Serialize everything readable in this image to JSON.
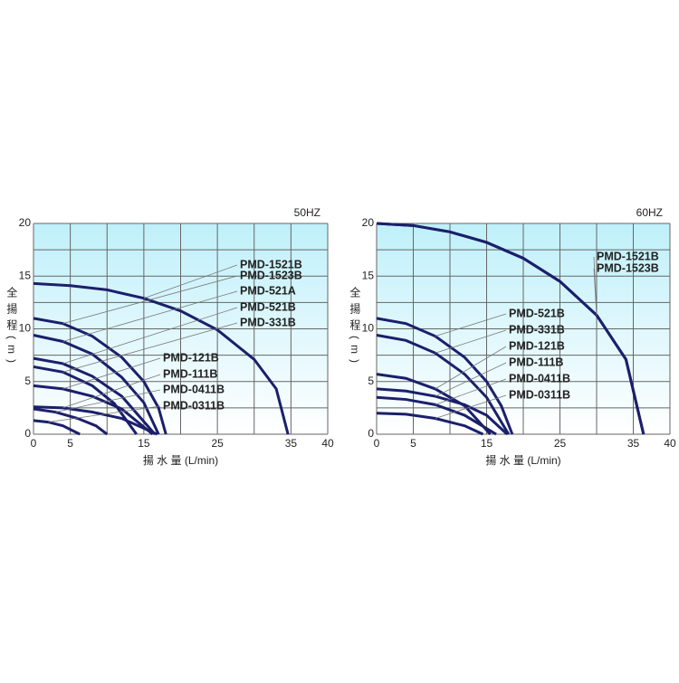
{
  "chart_data": [
    {
      "type": "line",
      "title": "50HZ",
      "x_label": "揚 水 量 (L/min)",
      "y_label": "全揚程(m)",
      "xlim": [
        0,
        40
      ],
      "xticks": [
        0,
        5,
        15,
        25,
        35,
        40
      ],
      "ylim": [
        0,
        20
      ],
      "yticks": [
        0,
        5,
        10,
        15,
        20
      ],
      "grid": true,
      "xgrid": [
        0,
        5,
        10,
        15,
        20,
        25,
        30,
        35,
        40
      ],
      "ygrid": [
        0,
        2.5,
        5,
        7.5,
        10,
        12.5,
        15,
        17.5,
        20
      ],
      "color": "#1b1f6b",
      "series": [
        {
          "name": "PMD-1521B",
          "x": [
            0,
            5,
            10,
            15,
            20,
            25,
            30,
            33,
            34.6
          ],
          "values": [
            14.3,
            14.1,
            13.7,
            12.9,
            11.7,
            9.9,
            7.1,
            4.3,
            0
          ]
        },
        {
          "name": "PMD-1523B",
          "x": [
            0,
            4,
            8,
            12,
            15,
            17,
            18
          ],
          "values": [
            11,
            10.5,
            9.3,
            7.3,
            5,
            2.5,
            0
          ]
        },
        {
          "name": "PMD-521A",
          "x": [
            0,
            4,
            8,
            12,
            15,
            17
          ],
          "values": [
            9.4,
            8.8,
            7.6,
            5.4,
            3,
            0
          ]
        },
        {
          "name": "PMD-521B",
          "x": [
            0,
            4,
            8,
            12,
            16.5
          ],
          "values": [
            7.2,
            6.7,
            5.5,
            3.6,
            0
          ]
        },
        {
          "name": "PMD-331B",
          "x": [
            0,
            4,
            8,
            11,
            14
          ],
          "values": [
            6.4,
            5.9,
            4.6,
            2.9,
            0
          ]
        },
        {
          "name": "PMD-121B",
          "x": [
            0,
            4,
            8,
            12,
            16.2
          ],
          "values": [
            4.6,
            4.3,
            3.6,
            2.4,
            0
          ]
        },
        {
          "name": "PMD-111B",
          "x": [
            0,
            4,
            8,
            12,
            16.8
          ],
          "values": [
            2.6,
            2.5,
            2.1,
            1.5,
            0
          ]
        },
        {
          "name": "PMD-0411B",
          "x": [
            0,
            3,
            6,
            8.5,
            10
          ],
          "values": [
            2.4,
            2.1,
            1.5,
            0.8,
            0
          ]
        },
        {
          "name": "PMD-0311B",
          "x": [
            0,
            2,
            4,
            6.3
          ],
          "values": [
            1.3,
            1.15,
            0.8,
            0
          ]
        }
      ]
    },
    {
      "type": "line",
      "title": "60HZ",
      "x_label": "揚 水 量 (L/min)",
      "y_label": "全揚程(m)",
      "xlim": [
        0,
        40
      ],
      "xticks": [
        0,
        5,
        15,
        25,
        35,
        40
      ],
      "ylim": [
        0,
        20
      ],
      "yticks": [
        0,
        5,
        10,
        15,
        20
      ],
      "grid": true,
      "xgrid": [
        0,
        5,
        10,
        15,
        20,
        25,
        30,
        35,
        40
      ],
      "ygrid": [
        0,
        2.5,
        5,
        7.5,
        10,
        12.5,
        15,
        17.5,
        20
      ],
      "color": "#1b1f6b",
      "series": [
        {
          "name": "PMD-1521B",
          "x": [
            0,
            5,
            10,
            15,
            20,
            25,
            30,
            34,
            36.4
          ],
          "values": [
            20,
            19.8,
            19.2,
            18.2,
            16.7,
            14.5,
            11.3,
            7.1,
            0
          ]
        },
        {
          "name": "PMD-1523B",
          "x": [
            0,
            5,
            10,
            15,
            20,
            25,
            30,
            34,
            36.4
          ],
          "values": [
            20,
            19.8,
            19.2,
            18.2,
            16.7,
            14.5,
            11.3,
            7.1,
            0
          ]
        },
        {
          "name": "PMD-521B",
          "x": [
            0,
            4,
            8,
            12,
            15,
            17,
            18.5
          ],
          "values": [
            11,
            10.5,
            9.3,
            7.3,
            5,
            2.7,
            0
          ]
        },
        {
          "name": "PMD-331B",
          "x": [
            0,
            4,
            8,
            12,
            15,
            18
          ],
          "values": [
            9.4,
            8.9,
            7.7,
            5.7,
            3.5,
            0
          ]
        },
        {
          "name": "PMD-121B",
          "x": [
            0,
            4,
            8,
            12,
            15.5
          ],
          "values": [
            5.7,
            5.3,
            4.3,
            2.7,
            0
          ]
        },
        {
          "name": "PMD-111B",
          "x": [
            0,
            4,
            8,
            12,
            15,
            17.8
          ],
          "values": [
            4.3,
            4.1,
            3.6,
            2.8,
            1.8,
            0
          ]
        },
        {
          "name": "PMD-0411B",
          "x": [
            0,
            4,
            8,
            12,
            16.3
          ],
          "values": [
            3.5,
            3.3,
            2.8,
            1.8,
            0
          ]
        },
        {
          "name": "PMD-0311B",
          "x": [
            0,
            4,
            8,
            12,
            14.5
          ],
          "values": [
            2,
            1.9,
            1.5,
            0.8,
            0
          ]
        }
      ]
    }
  ]
}
